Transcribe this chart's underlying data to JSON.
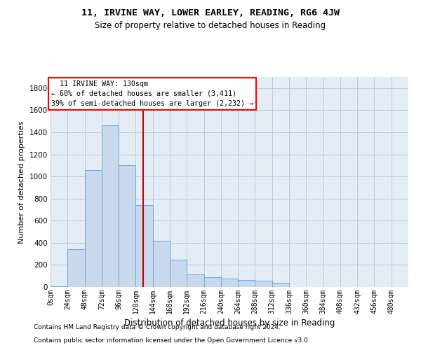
{
  "title1": "11, IRVINE WAY, LOWER EARLEY, READING, RG6 4JW",
  "title2": "Size of property relative to detached houses in Reading",
  "xlabel": "Distribution of detached houses by size in Reading",
  "ylabel": "Number of detached properties",
  "footer1": "Contains HM Land Registry data © Crown copyright and database right 2024.",
  "footer2": "Contains public sector information licensed under the Open Government Licence v3.0.",
  "annotation_line1": "  11 IRVINE WAY: 130sqm  ",
  "annotation_line2": "← 60% of detached houses are smaller (3,411)",
  "annotation_line3": "39% of semi-detached houses are larger (2,232) →",
  "bar_color": "#c8d9ee",
  "bar_edge_color": "#6aaad4",
  "grid_color": "#b8c4d4",
  "marker_line_color": "#cc0000",
  "marker_value": 130,
  "categories": [
    "0sqm",
    "24sqm",
    "48sqm",
    "72sqm",
    "96sqm",
    "120sqm",
    "144sqm",
    "168sqm",
    "192sqm",
    "216sqm",
    "240sqm",
    "264sqm",
    "288sqm",
    "312sqm",
    "336sqm",
    "360sqm",
    "384sqm",
    "408sqm",
    "432sqm",
    "456sqm",
    "480sqm"
  ],
  "bin_starts": [
    0,
    24,
    48,
    72,
    96,
    120,
    144,
    168,
    192,
    216,
    240,
    264,
    288,
    312,
    336,
    360,
    384,
    408,
    432,
    456,
    480
  ],
  "bin_width": 24,
  "values": [
    5,
    345,
    1055,
    1460,
    1100,
    740,
    420,
    245,
    115,
    90,
    75,
    65,
    55,
    40,
    0,
    0,
    0,
    0,
    0,
    0,
    0
  ],
  "ylim": [
    0,
    1900
  ],
  "yticks": [
    0,
    200,
    400,
    600,
    800,
    1000,
    1200,
    1400,
    1600,
    1800
  ],
  "background_color": "#ffffff",
  "plot_bg_color": "#e4ecf5"
}
